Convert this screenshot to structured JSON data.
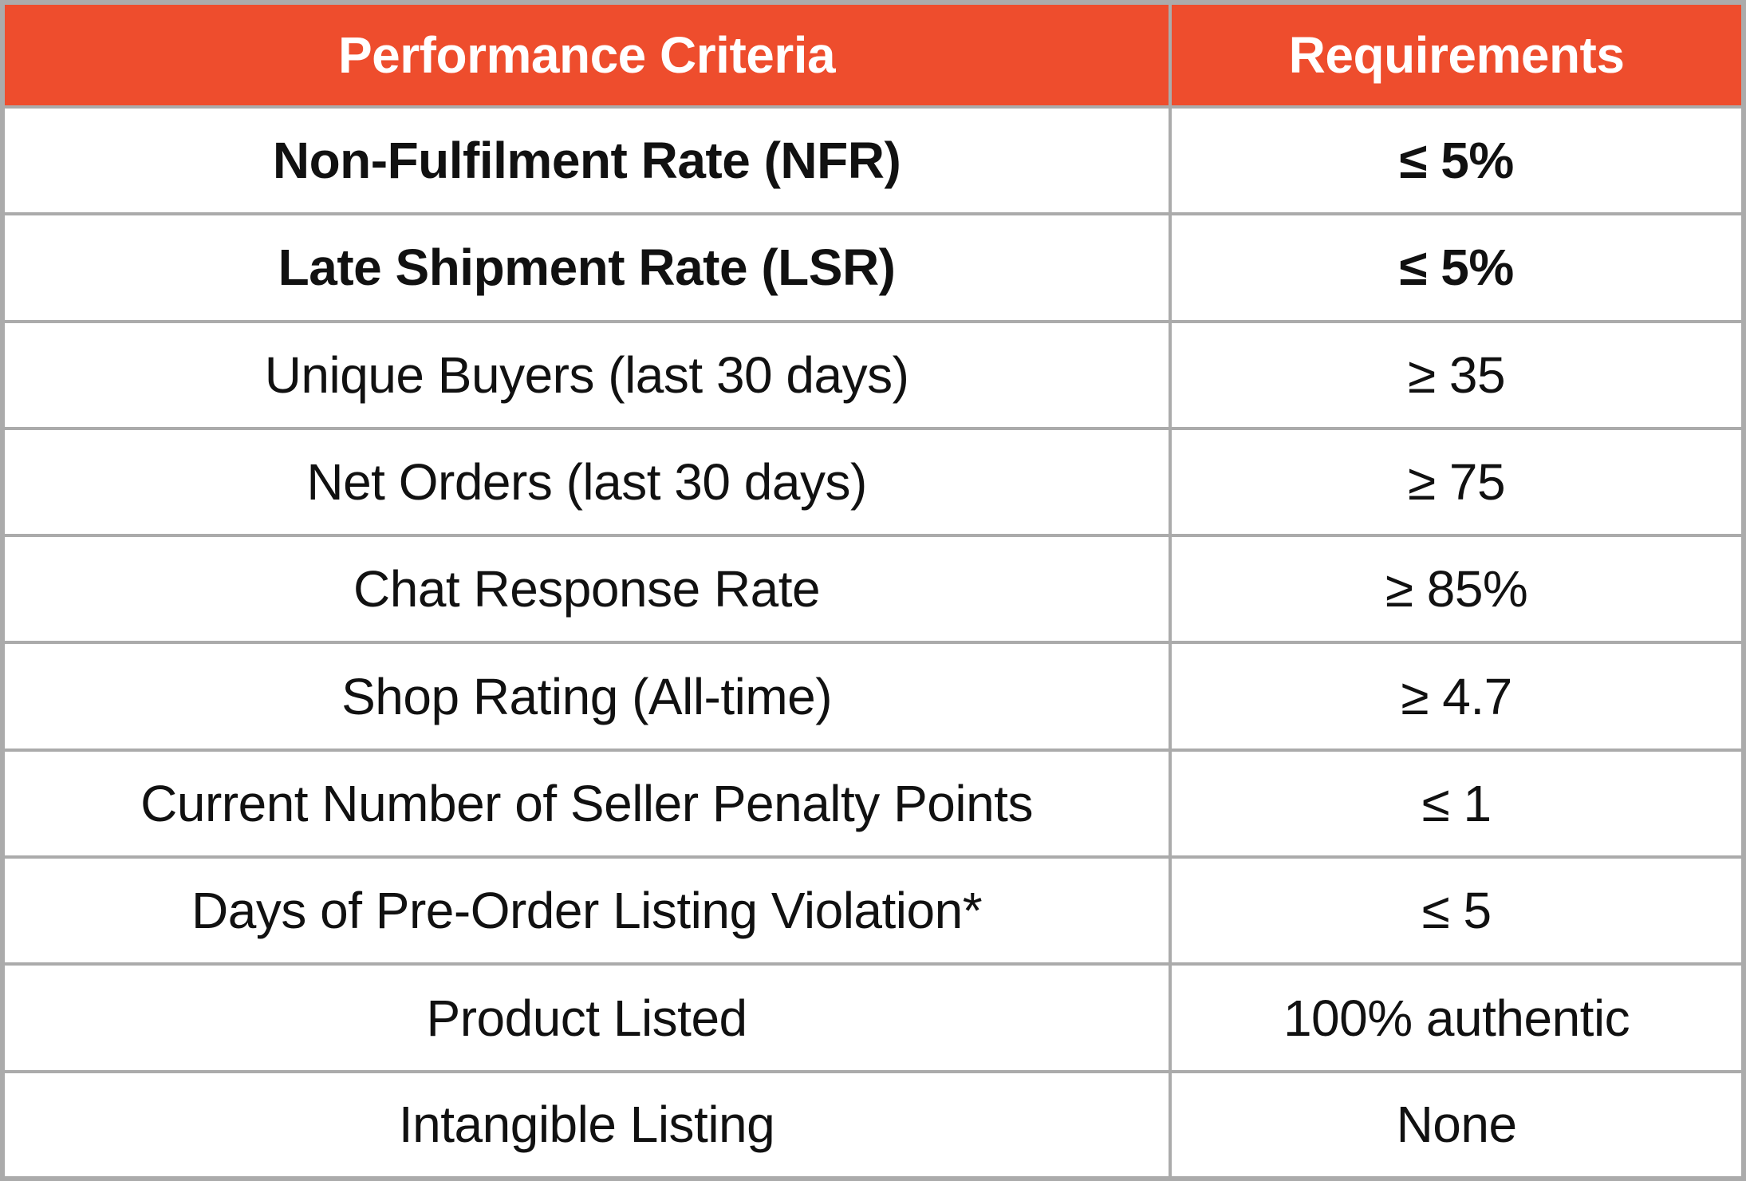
{
  "colors": {
    "header_bg": "#EE4D2D",
    "header_text": "#FFFFFF",
    "border": "#ABABAB",
    "row_bg": "#FFFFFF",
    "text": "#111111"
  },
  "chart_data": {
    "type": "table",
    "columns": [
      "Performance Criteria",
      "Requirements"
    ],
    "rows": [
      {
        "criteria": "Non-Fulfilment Rate (NFR)",
        "requirement": "≤ 5%",
        "bold": true
      },
      {
        "criteria": "Late Shipment Rate (LSR)",
        "requirement": "≤ 5%",
        "bold": true
      },
      {
        "criteria": "Unique Buyers (last 30 days)",
        "requirement": "≥ 35",
        "bold": false
      },
      {
        "criteria": "Net Orders (last 30 days)",
        "requirement": "≥ 75",
        "bold": false
      },
      {
        "criteria": "Chat Response Rate",
        "requirement": "≥ 85%",
        "bold": false
      },
      {
        "criteria": "Shop Rating (All-time)",
        "requirement": "≥ 4.7",
        "bold": false
      },
      {
        "criteria": "Current Number of Seller Penalty Points",
        "requirement": "≤ 1",
        "bold": false
      },
      {
        "criteria": "Days of Pre-Order Listing Violation*",
        "requirement": "≤ 5",
        "bold": false
      },
      {
        "criteria": "Product Listed",
        "requirement": "100% authentic",
        "bold": false
      },
      {
        "criteria": "Intangible Listing",
        "requirement": "None",
        "bold": false
      }
    ]
  }
}
